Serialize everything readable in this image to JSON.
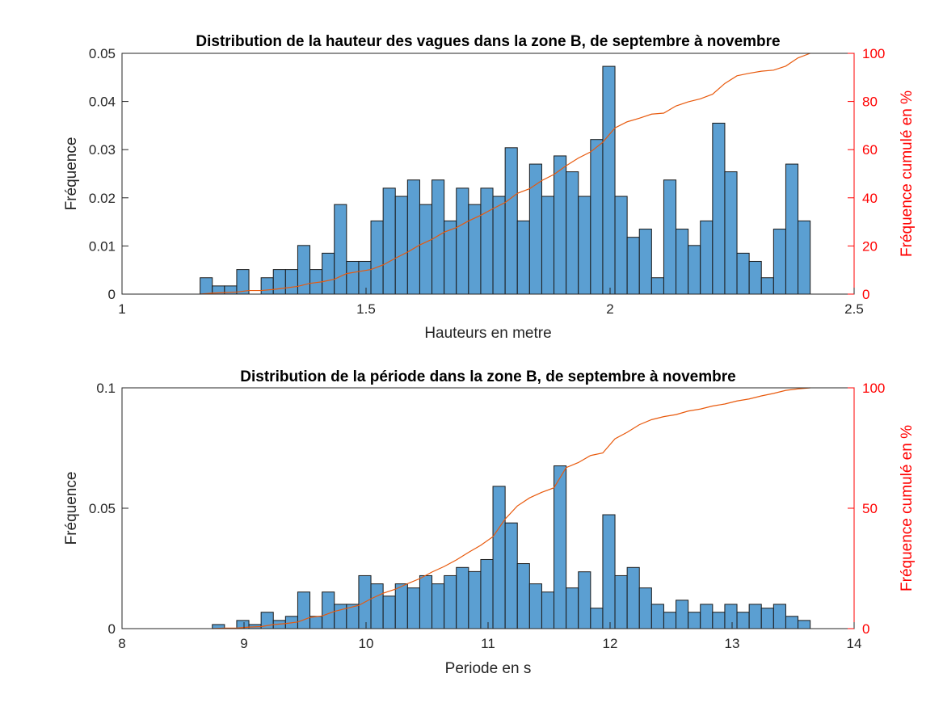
{
  "chart_data": [
    {
      "type": "bar",
      "title": "Distribution de la hauteur des vagues dans la zone B, de septembre à novembre",
      "xlabel": "Hauteurs en metre",
      "ylabel": "Fréquence",
      "ylabel_right": "Fréquence cumulé en %",
      "xlim": [
        1,
        2.5
      ],
      "ylim": [
        0,
        0.05
      ],
      "ylim_right": [
        0,
        100
      ],
      "xticks": [
        "1",
        "1.5",
        "2",
        "2.5"
      ],
      "yticks": [
        "0",
        "0.01",
        "0.02",
        "0.03",
        "0.04",
        "0.05"
      ],
      "yticks_right": [
        "0",
        "20",
        "40",
        "60",
        "80",
        "100"
      ],
      "bin_start": 1.16,
      "bin_width": 0.025,
      "values": [
        0.0034,
        0.0017,
        0.0017,
        0.0051,
        0.0,
        0.0034,
        0.0051,
        0.0051,
        0.0101,
        0.0051,
        0.0085,
        0.0186,
        0.0068,
        0.0068,
        0.0152,
        0.022,
        0.0203,
        0.0237,
        0.0186,
        0.0237,
        0.0152,
        0.022,
        0.0186,
        0.022,
        0.0203,
        0.0304,
        0.0152,
        0.027,
        0.0203,
        0.0287,
        0.0254,
        0.0203,
        0.0321,
        0.0473,
        0.0203,
        0.0118,
        0.0135,
        0.0034,
        0.0237,
        0.0135,
        0.0101,
        0.0152,
        0.0355,
        0.0254,
        0.0085,
        0.0068,
        0.0034,
        0.0135,
        0.027,
        0.0152
      ],
      "series": [
        {
          "name": "",
          "role": "cumulative"
        }
      ]
    },
    {
      "type": "bar",
      "title": "Distribution de la période dans la zone B, de septembre à novembre",
      "xlabel": "Periode en s",
      "ylabel": "Fréquence",
      "ylabel_right": "Fréquence cumulé en %",
      "xlim": [
        8,
        14
      ],
      "ylim": [
        0,
        0.1
      ],
      "ylim_right": [
        0,
        100
      ],
      "xticks": [
        "8",
        "9",
        "10",
        "11",
        "12",
        "13",
        "14"
      ],
      "yticks": [
        "0",
        "0.05",
        "0.1"
      ],
      "yticks_right": [
        "0",
        "50",
        "100"
      ],
      "bin_start": 8.74,
      "bin_width": 0.1,
      "values": [
        0.0017,
        0.0,
        0.0034,
        0.0017,
        0.0068,
        0.0034,
        0.0051,
        0.0152,
        0.0051,
        0.0152,
        0.0101,
        0.0101,
        0.022,
        0.0186,
        0.0135,
        0.0186,
        0.0169,
        0.022,
        0.0186,
        0.022,
        0.0254,
        0.0237,
        0.0287,
        0.0591,
        0.0439,
        0.027,
        0.0186,
        0.0152,
        0.0676,
        0.0169,
        0.0236,
        0.0085,
        0.0473,
        0.022,
        0.0254,
        0.0169,
        0.0101,
        0.0068,
        0.0118,
        0.0068,
        0.0101,
        0.0068,
        0.0101,
        0.0068,
        0.0101,
        0.0085,
        0.0101,
        0.0051,
        0.0034
      ]
    }
  ]
}
